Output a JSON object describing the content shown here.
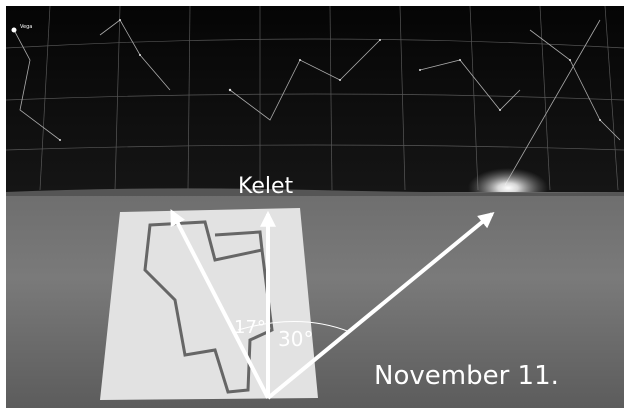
{
  "labels": {
    "star": "Vega",
    "direction": "Kelet",
    "angle_left": "17°",
    "angle_right": "30°",
    "date": "November 11."
  }
}
